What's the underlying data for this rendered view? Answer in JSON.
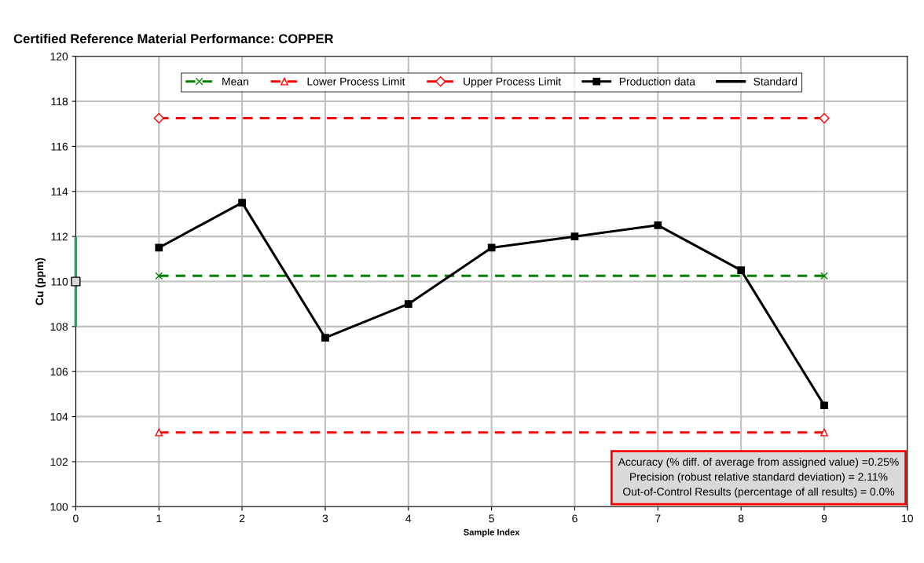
{
  "chart_data": {
    "type": "line",
    "title": "Certified Reference Material Performance: COPPER",
    "xlabel": "Sample Index",
    "ylabel": "Cu (ppm)",
    "xlim": [
      0,
      10
    ],
    "xticks": [
      0,
      1,
      2,
      3,
      4,
      5,
      6,
      7,
      8,
      9,
      10
    ],
    "ylim": [
      100,
      120
    ],
    "yticks": [
      100,
      102,
      104,
      106,
      108,
      110,
      112,
      114,
      116,
      118,
      120
    ],
    "grid": true,
    "legend": "top",
    "series": [
      {
        "name": "Mean",
        "color": "#008000",
        "x": [
          1,
          9
        ],
        "values": [
          110.25,
          110.25
        ],
        "marker": "cross",
        "line_style": "dashed"
      },
      {
        "name": "Lower Process Limit",
        "color": "#ff0000",
        "x": [
          1,
          9
        ],
        "values": [
          103.3,
          103.3
        ],
        "marker": "triangle",
        "line_style": "dashed"
      },
      {
        "name": "Upper Process Limit",
        "color": "#ff0000",
        "x": [
          1,
          9
        ],
        "values": [
          117.25,
          117.25
        ],
        "marker": "diamond",
        "line_style": "dashed"
      },
      {
        "name": "Production data",
        "color": "#000000",
        "x": [
          1,
          2,
          3,
          4,
          5,
          6,
          7,
          8,
          9
        ],
        "values": [
          111.5,
          113.5,
          107.5,
          109,
          111.5,
          112,
          112.5,
          110.5,
          104.5
        ],
        "marker": "square",
        "line_style": "solid"
      },
      {
        "name": "Standard",
        "type": "scatter",
        "color": "#d9d9d9",
        "x": [
          0
        ],
        "values": [
          110
        ],
        "errors": [
          [
            108,
            112
          ]
        ],
        "marker": "square"
      }
    ],
    "annotations": [
      "Accuracy (% diff. of average from assigned value) =0.25%",
      "Precision (robust relative standard deviation) = 2.11%",
      "Out-of-Control Results (percentage of all results) = 0.0%"
    ]
  }
}
